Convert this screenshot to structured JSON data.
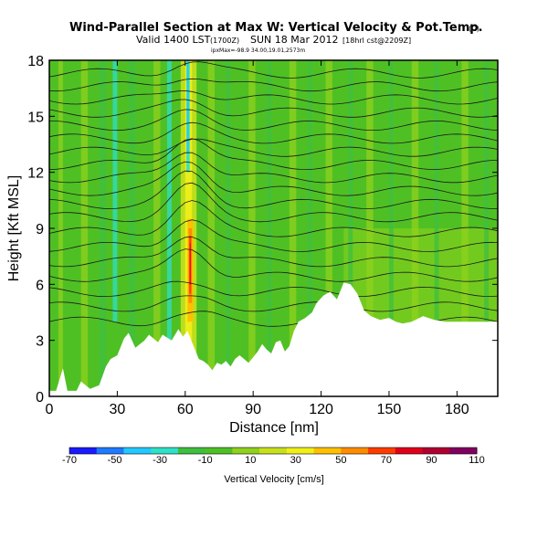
{
  "header": {
    "title": "Wind-Parallel Section at Max W: Vertical Velocity & Pot.Temp.",
    "copyright": "(C)",
    "valid_line": "Valid 1400 LST",
    "valid_zulu": "(1700Z)",
    "valid_date": "SUN 18 Mar 2012",
    "run_info": "[18hrl cst@2209Z]",
    "range_line": "ipxMax=-98.9 34.00,19.01,2573m"
  },
  "colors": {
    "contour": "#1a1a1a",
    "plot_bg": "#ffffff"
  },
  "chart_data": {
    "type": "heatmap",
    "title": "Wind-Parallel Section at Max W: Vertical Velocity & Pot.Temp.",
    "xlabel": "Distance [nm]",
    "ylabel": "Height [Kft MSL]",
    "xlim": [
      0,
      198
    ],
    "ylim": [
      0,
      18
    ],
    "xticks": [
      0,
      30,
      60,
      90,
      120,
      150,
      180
    ],
    "yticks": [
      0,
      3,
      6,
      9,
      12,
      15,
      18
    ],
    "colorbar": {
      "label": "Vertical Velocity [cm/s]",
      "ticks": [
        -70,
        -50,
        -30,
        -10,
        10,
        30,
        50,
        70,
        90,
        110
      ],
      "range": [
        -70,
        110
      ],
      "colors": [
        "#1a1aff",
        "#1e7bff",
        "#22c8ff",
        "#2ee0c8",
        "#3fbf3f",
        "#4fc024",
        "#8fd11c",
        "#c8e01c",
        "#f0f018",
        "#ffc000",
        "#ff8c00",
        "#ff3c00",
        "#e0001a",
        "#b00030",
        "#800060"
      ]
    },
    "terrain": [
      [
        0,
        0.3
      ],
      [
        3,
        0.3
      ],
      [
        6,
        1.5
      ],
      [
        8,
        0.3
      ],
      [
        12,
        0.3
      ],
      [
        14,
        0.8
      ],
      [
        18,
        0.4
      ],
      [
        22,
        0.6
      ],
      [
        25,
        1.6
      ],
      [
        27,
        2.0
      ],
      [
        30,
        2.2
      ],
      [
        33,
        3.1
      ],
      [
        35,
        3.4
      ],
      [
        38,
        2.6
      ],
      [
        40,
        2.8
      ],
      [
        42,
        3.0
      ],
      [
        44,
        3.3
      ],
      [
        46,
        3.1
      ],
      [
        48,
        2.9
      ],
      [
        50,
        3.3
      ],
      [
        54,
        3.0
      ],
      [
        57,
        3.6
      ],
      [
        59,
        3.2
      ],
      [
        61,
        3.5
      ],
      [
        64,
        2.6
      ],
      [
        66,
        2.0
      ],
      [
        68,
        1.9
      ],
      [
        70,
        1.7
      ],
      [
        72,
        1.4
      ],
      [
        74,
        1.8
      ],
      [
        76,
        1.7
      ],
      [
        78,
        1.9
      ],
      [
        80,
        1.6
      ],
      [
        82,
        2.0
      ],
      [
        84,
        2.2
      ],
      [
        86,
        2.0
      ],
      [
        88,
        1.8
      ],
      [
        90,
        2.1
      ],
      [
        92,
        2.4
      ],
      [
        94,
        2.8
      ],
      [
        96,
        2.5
      ],
      [
        98,
        2.3
      ],
      [
        100,
        2.9
      ],
      [
        102,
        3.0
      ],
      [
        104,
        2.4
      ],
      [
        106,
        2.7
      ],
      [
        108,
        3.5
      ],
      [
        110,
        4.0
      ],
      [
        113,
        4.2
      ],
      [
        116,
        4.5
      ],
      [
        118,
        5.0
      ],
      [
        121,
        5.4
      ],
      [
        124,
        5.6
      ],
      [
        127,
        5.2
      ],
      [
        130,
        6.1
      ],
      [
        133,
        6.0
      ],
      [
        136,
        5.5
      ],
      [
        139,
        4.6
      ],
      [
        142,
        4.3
      ],
      [
        146,
        4.1
      ],
      [
        150,
        4.2
      ],
      [
        153,
        4.0
      ],
      [
        156,
        3.9
      ],
      [
        160,
        4.0
      ],
      [
        165,
        4.3
      ],
      [
        170,
        4.1
      ],
      [
        175,
        4.0
      ],
      [
        180,
        4.0
      ],
      [
        185,
        4.0
      ],
      [
        198,
        4.0
      ]
    ],
    "isentropes": [
      4,
      4.8,
      5.6,
      6.4,
      7.2,
      8.0,
      8.8,
      9.6,
      10.3,
      11.0,
      11.7,
      12.4,
      13.1,
      13.8,
      14.5,
      15.2,
      15.9,
      16.6,
      17.3
    ],
    "updraft_core": {
      "x": 60,
      "max_cm_s": 110,
      "height_kft": [
        3,
        9.5
      ]
    }
  }
}
